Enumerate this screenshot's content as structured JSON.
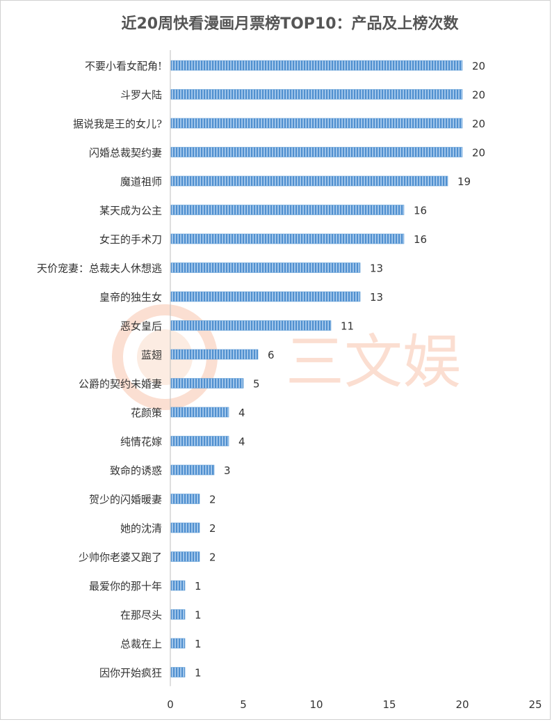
{
  "watermark": "三文娱",
  "chart_data": {
    "type": "bar",
    "orientation": "horizontal",
    "title": "近20周快看漫画月票榜TOP10：产品及上榜次数",
    "categories": [
      "不要小看女配角!",
      "斗罗大陆",
      "据说我是王的女儿?",
      "闪婚总裁契约妻",
      "魔道祖师",
      "某天成为公主",
      "女王的手术刀",
      "天价宠妻：总裁夫人休想逃",
      "皇帝的独生女",
      "恶女皇后",
      "蓝翅",
      "公爵的契约未婚妻",
      "花颜策",
      "纯情花嫁",
      "致命的诱惑",
      "贺少的闪婚暖妻",
      "她的沈清",
      "少帅你老婆又跑了",
      "最爱你的那十年",
      "在那尽头",
      "总裁在上",
      "因你开始疯狂"
    ],
    "values": [
      20,
      20,
      20,
      20,
      19,
      16,
      16,
      13,
      13,
      11,
      6,
      5,
      4,
      4,
      3,
      2,
      2,
      2,
      1,
      1,
      1,
      1
    ],
    "x_ticks": [
      "0",
      "5",
      "10",
      "15",
      "20",
      "25"
    ],
    "xlim": [
      0,
      25
    ],
    "bar_color": "#5b9bd5",
    "grid": false,
    "legend": "none"
  }
}
